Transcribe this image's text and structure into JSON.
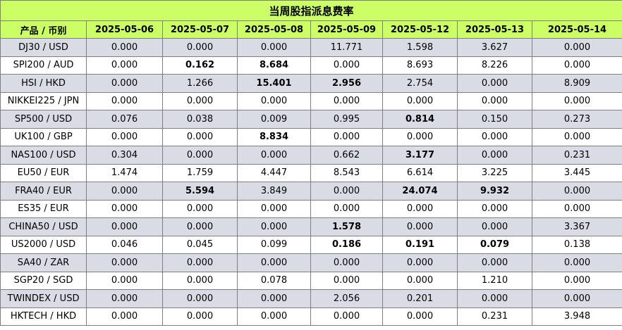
{
  "title": "当周股指派息费率",
  "columns": [
    "产品 / 币别",
    "2025-05-06",
    "2025-05-07",
    "2025-05-08",
    "2025-05-09",
    "2025-05-12",
    "2025-05-13",
    "2025-05-14"
  ],
  "rows": [
    {
      "product": "DJ30 / USD",
      "values": [
        "0.000",
        "0.000",
        "0.000",
        "11.771",
        "1.598",
        "3.627",
        "0.000"
      ],
      "bold": [
        false,
        false,
        false,
        false,
        false,
        false,
        false
      ]
    },
    {
      "product": "SPI200 / AUD",
      "values": [
        "0.000",
        "0.162",
        "8.684",
        "0.000",
        "8.693",
        "8.226",
        "0.000"
      ],
      "bold": [
        false,
        true,
        true,
        false,
        false,
        false,
        false
      ]
    },
    {
      "product": "HSI / HKD",
      "values": [
        "0.000",
        "1.266",
        "15.401",
        "2.956",
        "2.754",
        "0.000",
        "8.909"
      ],
      "bold": [
        false,
        false,
        true,
        true,
        false,
        false,
        false
      ]
    },
    {
      "product": "NIKKEI225 / JPN",
      "values": [
        "0.000",
        "0.000",
        "0.000",
        "0.000",
        "0.000",
        "0.000",
        "0.000"
      ],
      "bold": [
        false,
        false,
        false,
        false,
        false,
        false,
        false
      ]
    },
    {
      "product": "SP500 / USD",
      "values": [
        "0.076",
        "0.038",
        "0.009",
        "0.995",
        "0.814",
        "0.150",
        "0.273"
      ],
      "bold": [
        false,
        false,
        false,
        false,
        true,
        false,
        false
      ]
    },
    {
      "product": "UK100 / GBP",
      "values": [
        "0.000",
        "0.000",
        "8.834",
        "0.000",
        "0.000",
        "0.000",
        "0.000"
      ],
      "bold": [
        false,
        false,
        true,
        false,
        false,
        false,
        false
      ]
    },
    {
      "product": "NAS100 / USD",
      "values": [
        "0.304",
        "0.000",
        "0.000",
        "0.662",
        "3.177",
        "0.000",
        "0.231"
      ],
      "bold": [
        false,
        false,
        false,
        false,
        true,
        false,
        false
      ]
    },
    {
      "product": "EU50 / EUR",
      "values": [
        "1.474",
        "1.759",
        "4.447",
        "8.543",
        "6.614",
        "3.225",
        "3.445"
      ],
      "bold": [
        false,
        false,
        false,
        false,
        false,
        false,
        false
      ]
    },
    {
      "product": "FRA40 / EUR",
      "values": [
        "0.000",
        "5.594",
        "3.849",
        "0.000",
        "24.074",
        "9.932",
        "0.000"
      ],
      "bold": [
        false,
        true,
        false,
        false,
        true,
        true,
        false
      ]
    },
    {
      "product": "ES35 / EUR",
      "values": [
        "0.000",
        "0.000",
        "0.000",
        "0.000",
        "0.000",
        "0.000",
        "0.000"
      ],
      "bold": [
        false,
        false,
        false,
        false,
        false,
        false,
        false
      ]
    },
    {
      "product": "CHINA50 / USD",
      "values": [
        "0.000",
        "0.000",
        "0.000",
        "1.578",
        "0.000",
        "0.000",
        "3.367"
      ],
      "bold": [
        false,
        false,
        false,
        true,
        false,
        false,
        false
      ]
    },
    {
      "product": "US2000 / USD",
      "values": [
        "0.046",
        "0.045",
        "0.099",
        "0.186",
        "0.191",
        "0.079",
        "0.138"
      ],
      "bold": [
        false,
        false,
        false,
        true,
        true,
        true,
        false
      ]
    },
    {
      "product": "SA40 / ZAR",
      "values": [
        "0.000",
        "0.000",
        "0.000",
        "0.000",
        "0.000",
        "0.000",
        "0.000"
      ],
      "bold": [
        false,
        false,
        false,
        false,
        false,
        false,
        false
      ]
    },
    {
      "product": "SGP20 / SGD",
      "values": [
        "0.000",
        "0.000",
        "0.078",
        "0.000",
        "0.000",
        "1.210",
        "0.000"
      ],
      "bold": [
        false,
        false,
        false,
        false,
        false,
        false,
        false
      ]
    },
    {
      "product": "TWINDEX / USD",
      "values": [
        "0.000",
        "0.000",
        "0.000",
        "2.056",
        "0.201",
        "0.000",
        "0.000"
      ],
      "bold": [
        false,
        false,
        false,
        false,
        false,
        false,
        false
      ]
    },
    {
      "product": "HKTECH / HKD",
      "values": [
        "0.000",
        "0.000",
        "0.000",
        "0.000",
        "0.000",
        "0.231",
        "3.948"
      ],
      "bold": [
        false,
        false,
        false,
        false,
        false,
        false,
        false
      ]
    }
  ]
}
